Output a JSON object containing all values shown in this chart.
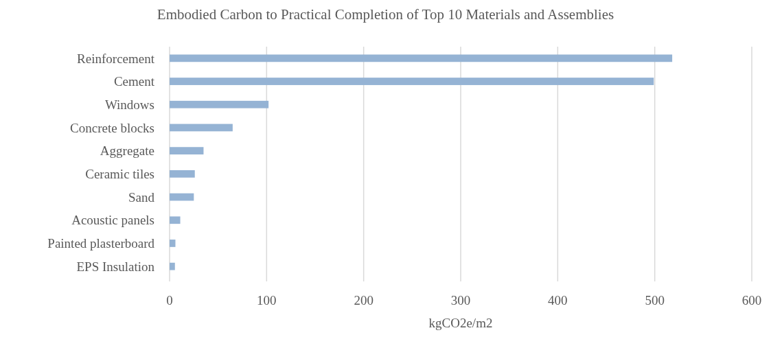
{
  "chart_data": {
    "type": "bar",
    "orientation": "horizontal",
    "title": "Embodied Carbon to Practical Completion of Top 10 Materials and Assemblies",
    "xlabel": "kgCO2e/m2",
    "categories": [
      "Reinforcement",
      "Cement",
      "Windows",
      "Concrete blocks",
      "Aggregate",
      "Ceramic tiles",
      "Sand",
      "Acoustic panels",
      "Painted plasterboard",
      "EPS Insulation"
    ],
    "values": [
      518,
      499,
      102,
      65,
      35,
      26,
      25,
      11,
      6,
      5.5
    ],
    "color": "#95b3d4",
    "xlim": [
      0,
      600
    ],
    "xticks": [
      0,
      100,
      200,
      300,
      400,
      500,
      600
    ],
    "grid": "x"
  }
}
